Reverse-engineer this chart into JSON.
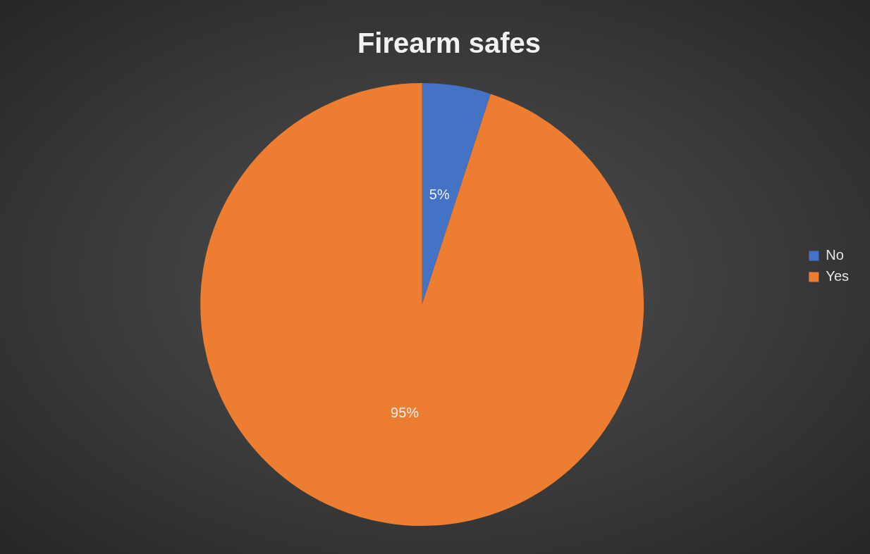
{
  "chart_data": {
    "type": "pie",
    "title": "Firearm safes",
    "categories": [
      "No",
      "Yes"
    ],
    "values": [
      5,
      95
    ],
    "colors": [
      "#4472c4",
      "#ed7d31"
    ],
    "value_labels": [
      "5%",
      "95%"
    ],
    "legend": "right"
  }
}
